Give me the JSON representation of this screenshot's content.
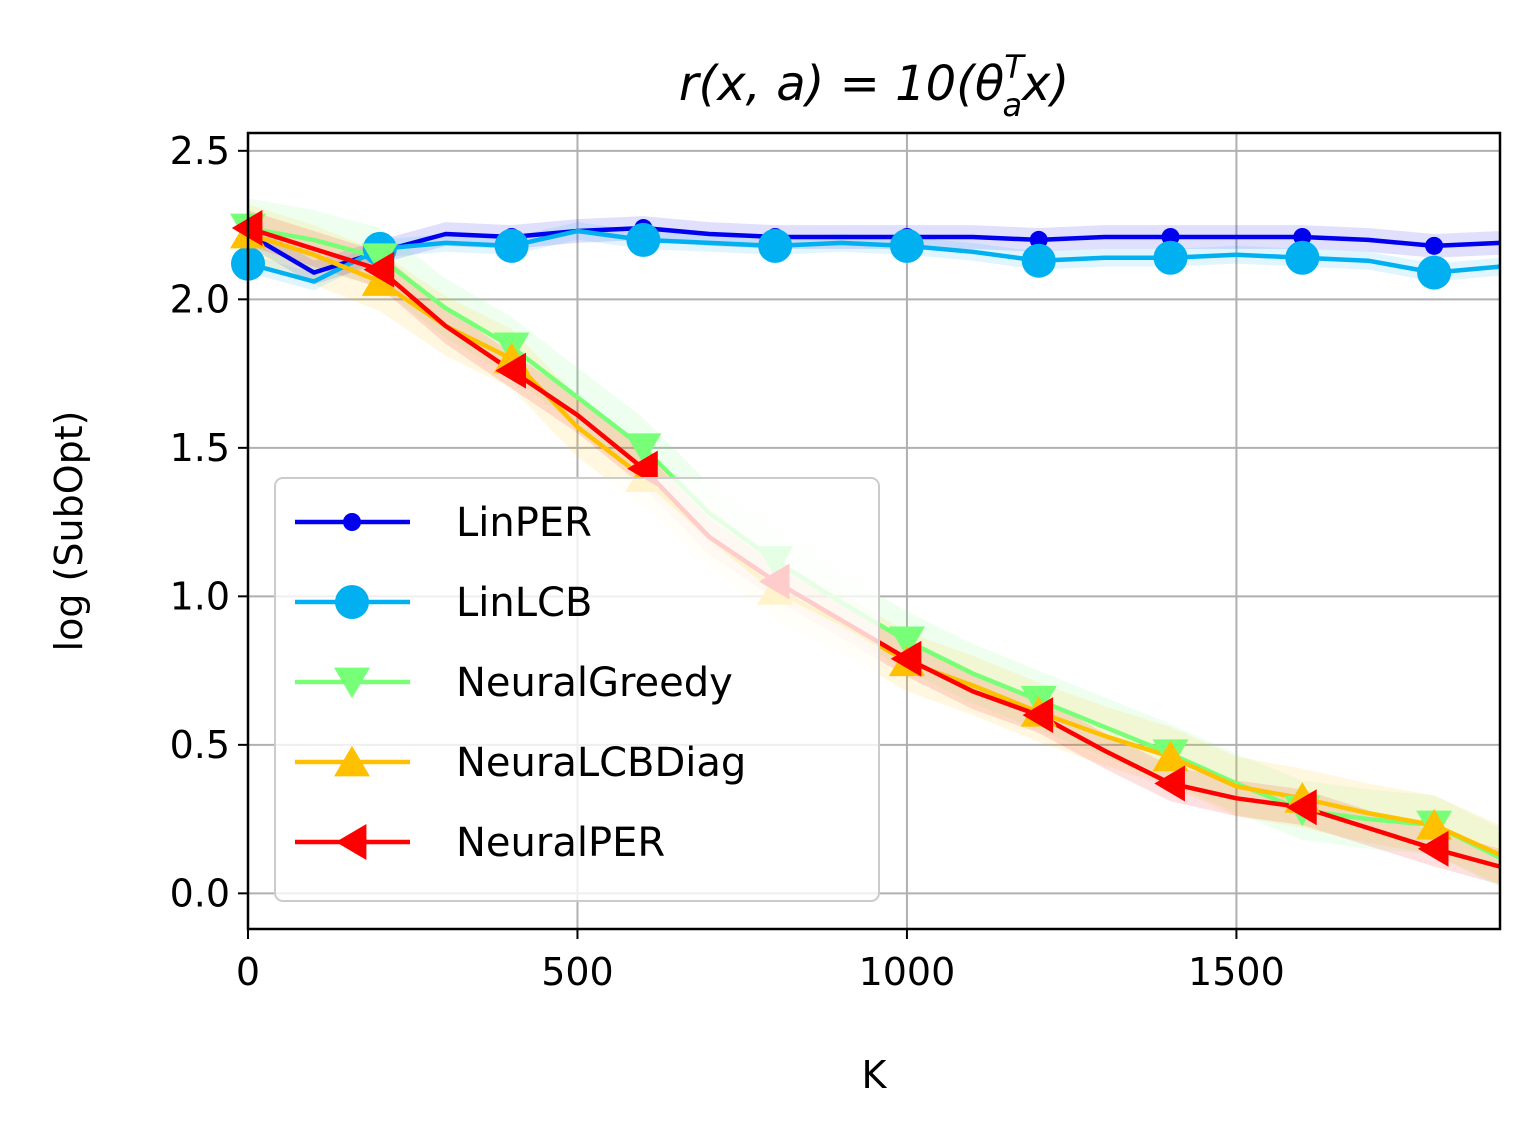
{
  "chart_data": {
    "type": "line",
    "title": "r(x, a) = 10(θaTx)",
    "title_parts": {
      "pre": "r(x, a) = 10(θ",
      "sup": "T",
      "sub": "a",
      "post": "x)"
    },
    "xlabel": "K",
    "ylabel": "log (SubOpt)",
    "xlim": [
      0,
      1900
    ],
    "ylim": [
      -0.12,
      2.56
    ],
    "xticks": [
      0,
      500,
      1000,
      1500
    ],
    "xtick_labels": [
      "0",
      "500",
      "1000",
      "1500"
    ],
    "yticks": [
      0.0,
      0.5,
      1.0,
      1.5,
      2.0,
      2.5
    ],
    "ytick_labels": [
      "0.0",
      "0.5",
      "1.0",
      "1.5",
      "2.0",
      "2.5"
    ],
    "grid": true,
    "legend_position": "lower-left",
    "x": [
      0,
      100,
      200,
      300,
      400,
      500,
      600,
      700,
      800,
      900,
      1000,
      1100,
      1200,
      1300,
      1400,
      1500,
      1600,
      1700,
      1800,
      1900
    ],
    "series": [
      {
        "name": "LinPER",
        "color": "#0000ee",
        "marker": "dot",
        "marker_every": 2,
        "band": 0.04,
        "values": [
          2.22,
          2.09,
          2.16,
          2.22,
          2.21,
          2.23,
          2.24,
          2.22,
          2.21,
          2.21,
          2.21,
          2.21,
          2.2,
          2.21,
          2.21,
          2.21,
          2.21,
          2.2,
          2.18,
          2.19
        ]
      },
      {
        "name": "LinLCB",
        "color": "#00b0f0",
        "marker": "circle",
        "marker_every": 2,
        "band": 0.03,
        "values": [
          2.12,
          2.06,
          2.17,
          2.19,
          2.18,
          2.23,
          2.2,
          2.19,
          2.18,
          2.19,
          2.18,
          2.16,
          2.13,
          2.14,
          2.14,
          2.15,
          2.14,
          2.13,
          2.09,
          2.11
        ]
      },
      {
        "name": "NeuralGreedy",
        "color": "#78ff78",
        "marker": "triangle-down",
        "marker_every": 2,
        "band": 0.1,
        "values": [
          2.24,
          2.2,
          2.14,
          1.97,
          1.84,
          1.67,
          1.5,
          1.28,
          1.12,
          0.98,
          0.85,
          0.74,
          0.65,
          0.56,
          0.47,
          0.37,
          0.28,
          0.25,
          0.23,
          0.12
        ]
      },
      {
        "name": "NeuraLCBDiag",
        "color": "#ffc000",
        "marker": "triangle-up",
        "marker_every": 2,
        "band": 0.1,
        "values": [
          2.22,
          2.15,
          2.06,
          1.91,
          1.8,
          1.57,
          1.4,
          1.2,
          1.02,
          0.91,
          0.78,
          0.7,
          0.61,
          0.53,
          0.46,
          0.36,
          0.32,
          0.27,
          0.23,
          0.13
        ]
      },
      {
        "name": "NeuralPER",
        "color": "#ff0000",
        "marker": "triangle-left",
        "marker_every": 2,
        "band": 0.06,
        "values": [
          2.24,
          2.17,
          2.1,
          1.91,
          1.76,
          1.61,
          1.43,
          1.2,
          1.05,
          0.92,
          0.79,
          0.68,
          0.6,
          0.48,
          0.37,
          0.32,
          0.29,
          0.22,
          0.15,
          0.09
        ]
      }
    ]
  }
}
